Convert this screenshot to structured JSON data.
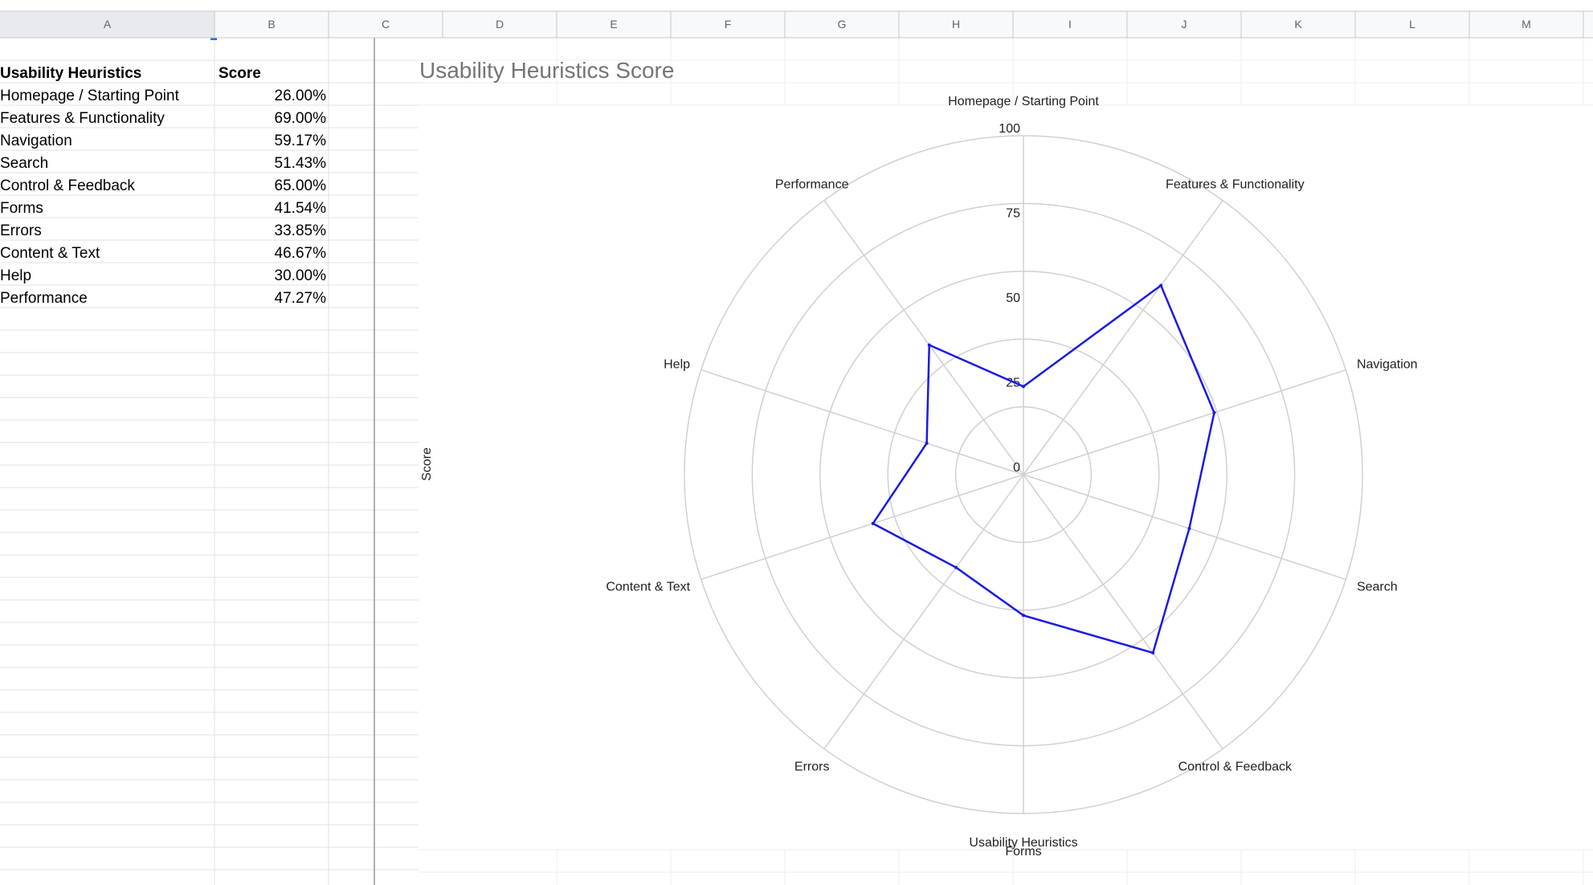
{
  "columns": [
    "A",
    "B",
    "C",
    "D",
    "E",
    "F",
    "G",
    "H",
    "I",
    "J",
    "K",
    "L",
    "M"
  ],
  "table": {
    "header_label": "Usability Heuristics",
    "header_score": "Score",
    "rows": [
      {
        "label": "Homepage / Starting Point",
        "score": "26.00%"
      },
      {
        "label": "Features & Functionality",
        "score": "69.00%"
      },
      {
        "label": "Navigation",
        "score": "59.17%"
      },
      {
        "label": "Search",
        "score": "51.43%"
      },
      {
        "label": "Control & Feedback",
        "score": "65.00%"
      },
      {
        "label": "Forms",
        "score": "41.54%"
      },
      {
        "label": "Errors",
        "score": "33.85%"
      },
      {
        "label": "Content & Text",
        "score": "46.67%"
      },
      {
        "label": "Help",
        "score": "30.00%"
      },
      {
        "label": "Performance",
        "score": "47.27%"
      }
    ]
  },
  "colors": {
    "series_line": "#1a1ae6",
    "grid": "#d0d0d0",
    "header_bg": "#f8f9fa",
    "header_selected_bg": "#e8eaed"
  },
  "chart_data": {
    "type": "radar",
    "title": "Usability Heuristics Score",
    "xlabel": "Usability Heuristics",
    "ylabel": "Score",
    "categories": [
      "Homepage / Starting Point",
      "Features & Functionality",
      "Navigation",
      "Search",
      "Control & Feedback",
      "Forms",
      "Errors",
      "Content & Text",
      "Help",
      "Performance"
    ],
    "series": [
      {
        "values": [
          26.0,
          69.0,
          59.17,
          51.43,
          65.0,
          41.54,
          33.85,
          46.67,
          30.0,
          47.27
        ]
      }
    ],
    "rlim": [
      0,
      100
    ],
    "ticks": [
      "0",
      "25",
      "50",
      "75",
      "100"
    ],
    "grid": true,
    "legend": "none"
  }
}
